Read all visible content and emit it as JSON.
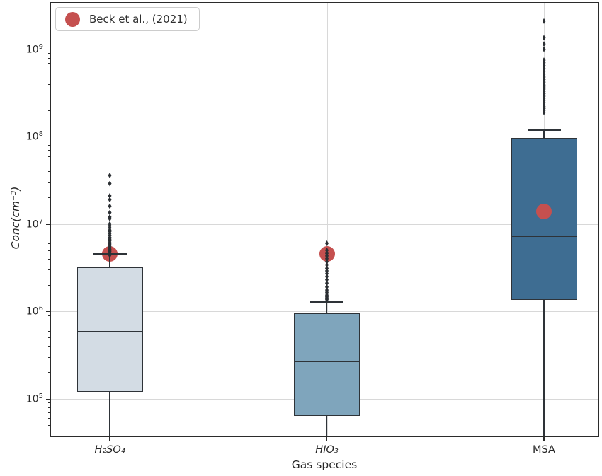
{
  "figure": {
    "xlabel": "Gas species",
    "ylabel": "Conc(cm⁻³)"
  },
  "legend": {
    "label": "Beck et al., (2021)",
    "marker": "circle-icon",
    "marker_color": "#c5504f"
  },
  "colors": {
    "box_edge": "#2e3338",
    "median": "#2e3338",
    "whisker": "#2e3338",
    "flier": "#2b2f33",
    "beck_marker": "#c5504f",
    "grid": "#d8d8d8",
    "spine": "#2b2b2b",
    "text": "#262626"
  },
  "chart_data": {
    "type": "boxplot",
    "title": "",
    "xlabel": "Gas species",
    "ylabel": "Conc(cm⁻³)",
    "yscale": "log",
    "ylim": [
      37000.0,
      3400000000.0
    ],
    "grid": true,
    "legend_position": "upper left",
    "y_tick_base": "10",
    "y_major_tick_exponents": [
      5,
      6,
      7,
      8,
      9
    ],
    "series_overlay": {
      "name": "Beck et al., (2021)",
      "values": [
        4500000.0,
        4500000.0,
        14000000.0
      ]
    },
    "categories": [
      {
        "label": "H₂SO₄",
        "italic": true,
        "box_color": "#d3dce4",
        "stats": {
          "q1": 120000.0,
          "median": 600000.0,
          "q3": 3200000.0,
          "whisker_high": 4600000.0,
          "whisker_low": 37000.0,
          "whisker_low_clipped_at_axis": true
        },
        "beck_2021": 4500000.0,
        "outliers": [
          36000000.0,
          29000000.0,
          21000000.0,
          19000000.0,
          16000000.0,
          13500000.0,
          12000000.0,
          11500000.0,
          10000000.0,
          9500000.0,
          9000000.0,
          8500000.0,
          8200000.0,
          7800000.0,
          7400000.0,
          7000000.0,
          6700000.0,
          6400000.0,
          6100000.0,
          5900000.0,
          5700000.0,
          5500000.0,
          5300000.0,
          5100000.0,
          4900000.0,
          4800000.0,
          4600000.0,
          4400000.0
        ]
      },
      {
        "label": "HIO₃",
        "italic": true,
        "box_color": "#7fa5bc",
        "stats": {
          "q1": 63000.0,
          "median": 270000.0,
          "q3": 950000.0,
          "whisker_high": 1300000.0,
          "whisker_low": 37000.0,
          "whisker_low_clipped_at_axis": true
        },
        "beck_2021": 4500000.0,
        "outliers": [
          6000000.0,
          5000000.0,
          4600000.0,
          4300000.0,
          4000000.0,
          3700000.0,
          3400000.0,
          3100000.0,
          2900000.0,
          2700000.0,
          2500000.0,
          2300000.0,
          2100000.0,
          1900000.0,
          1750000.0,
          1650000.0,
          1580000.0,
          1520000.0,
          1470000.0,
          1430000.0,
          1390000.0,
          1360000.0
        ]
      },
      {
        "label": "MSA",
        "italic": false,
        "box_color": "#3e6d92",
        "stats": {
          "q1": 1350000.0,
          "median": 7300000.0,
          "q3": 96000000.0,
          "whisker_high": 120000000.0,
          "whisker_low": 37000.0,
          "whisker_low_clipped_at_axis": true
        },
        "beck_2021": 14000000.0,
        "outliers": [
          2100000000.0,
          1350000000.0,
          1150000000.0,
          1000000000.0,
          750000000.0,
          700000000.0,
          650000000.0,
          600000000.0,
          560000000.0,
          520000000.0,
          480000000.0,
          450000000.0,
          420000000.0,
          390000000.0,
          370000000.0,
          350000000.0,
          330000000.0,
          310000000.0,
          290000000.0,
          275000000.0,
          260000000.0,
          245000000.0,
          230000000.0,
          220000000.0,
          210000000.0,
          200000000.0,
          190000000.0
        ]
      }
    ]
  }
}
